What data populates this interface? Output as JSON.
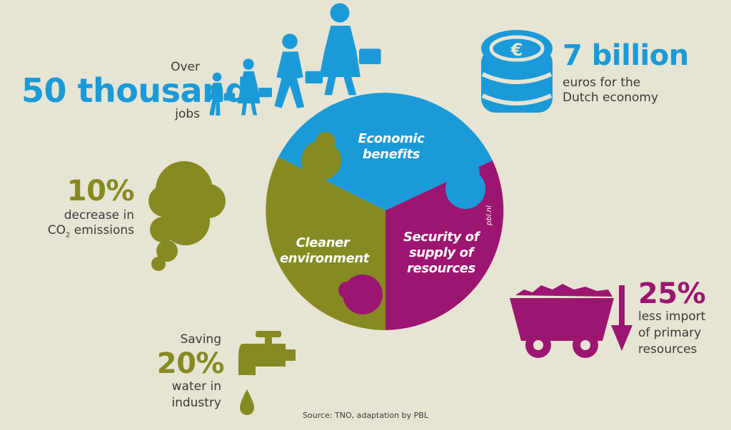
{
  "jobs": {
    "over": "Over",
    "value": "50 thousand",
    "label": "jobs"
  },
  "economy": {
    "value": "7 billion",
    "line1": "euros for the",
    "line2": "Dutch economy"
  },
  "co2": {
    "value": "10%",
    "line1": "decrease in",
    "line2_pre": "CO",
    "line2_sub": "2",
    "line2_post": " emissions"
  },
  "water": {
    "pre": "Saving",
    "value": "20%",
    "line1": "water in",
    "line2": "industry"
  },
  "imports": {
    "value": "25%",
    "line1": "less import",
    "line2": "of primary",
    "line3": "resources"
  },
  "puzzle": {
    "economic": [
      "Economic",
      "benefits"
    ],
    "cleaner": [
      "Cleaner",
      "environment"
    ],
    "security": [
      "Security of",
      "supply of",
      "resources"
    ],
    "watermark": "pbl.nl"
  },
  "source": "Source: TNO, adaptation by PBL",
  "colors": {
    "blue": "#1a9ad9",
    "green": "#858b22",
    "purple": "#9c1570",
    "background": "#e6e5d3"
  },
  "icons": [
    "walking-person-icon",
    "coin-stack-euro-icon",
    "smoke-cloud-icon",
    "water-tap-icon",
    "mine-cart-icon",
    "down-arrow-icon"
  ]
}
